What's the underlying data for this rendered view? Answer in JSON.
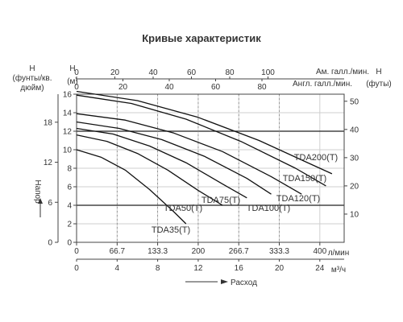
{
  "chart_data": {
    "type": "line",
    "title": "Кривые характеристик",
    "axes": {
      "left_outer": {
        "label_line1": "H",
        "label_line2": "(фунты/кв.",
        "label_line3": "дюйм)",
        "ticks": [
          "0",
          "6",
          "12",
          "18"
        ],
        "range": [
          0,
          22.2
        ]
      },
      "left_inner": {
        "label_line1": "H",
        "label_line2": "(м)",
        "ticks": [
          "0",
          "2",
          "4",
          "6",
          "8",
          "10",
          "12",
          "14",
          "16"
        ],
        "range": [
          0,
          16
        ]
      },
      "left_side_caption": "Напор",
      "right": {
        "label_line1": "H",
        "label_line2": "(футы)",
        "ticks": [
          "10",
          "20",
          "30",
          "40",
          "50"
        ],
        "range": [
          0,
          52.5
        ]
      },
      "top_us_gal": {
        "label": "Ам. галл./мин.",
        "ticks": [
          "0",
          "20",
          "40",
          "60",
          "80",
          "100"
        ]
      },
      "top_imp_gal": {
        "label": "Англ. галл./мин.",
        "ticks": [
          "0",
          "20",
          "40",
          "60",
          "80"
        ]
      },
      "bottom_lmin": {
        "label": "л/мин",
        "ticks": [
          "0",
          "66.7",
          "133.3",
          "200",
          "266.7",
          "333.3",
          "400"
        ],
        "range": [
          0,
          440
        ]
      },
      "bottom_m3h": {
        "label": "м³/ч",
        "ticks": [
          "0",
          "4",
          "8",
          "12",
          "16",
          "20",
          "24"
        ]
      },
      "bottom_caption": "Расход"
    },
    "units": {
      "x": "л/мин",
      "y": "м"
    },
    "grid": true,
    "series": [
      {
        "name": "TDA35(T)",
        "x": [
          0,
          40,
          80,
          120,
          160,
          180
        ],
        "y": [
          10.0,
          9.2,
          7.8,
          5.7,
          3.3,
          2.0
        ]
      },
      {
        "name": "TDA50(T)",
        "x": [
          0,
          50,
          100,
          150,
          200,
          240
        ],
        "y": [
          11.6,
          10.9,
          9.6,
          7.8,
          5.6,
          4.0
        ]
      },
      {
        "name": "TDA75(T)",
        "x": [
          0,
          60,
          120,
          180,
          240,
          280
        ],
        "y": [
          12.3,
          11.7,
          10.4,
          8.6,
          6.3,
          4.8
        ]
      },
      {
        "name": "TDA100(T)",
        "x": [
          0,
          70,
          140,
          210,
          280,
          320
        ],
        "y": [
          13.0,
          12.3,
          11.1,
          9.3,
          6.9,
          5.2
        ]
      },
      {
        "name": "TDA120(T)",
        "x": [
          0,
          80,
          160,
          240,
          320,
          370
        ],
        "y": [
          13.9,
          13.2,
          11.8,
          9.8,
          7.1,
          5.2
        ]
      },
      {
        "name": "TDA150(T)",
        "x": [
          0,
          90,
          180,
          270,
          360,
          410
        ],
        "y": [
          15.9,
          15.0,
          13.3,
          10.9,
          8.0,
          6.1
        ]
      },
      {
        "name": "TDA200(T)",
        "x": [
          0,
          100,
          200,
          300,
          380,
          420
        ],
        "y": [
          16.3,
          15.3,
          13.5,
          11.0,
          8.6,
          7.4
        ]
      }
    ]
  }
}
